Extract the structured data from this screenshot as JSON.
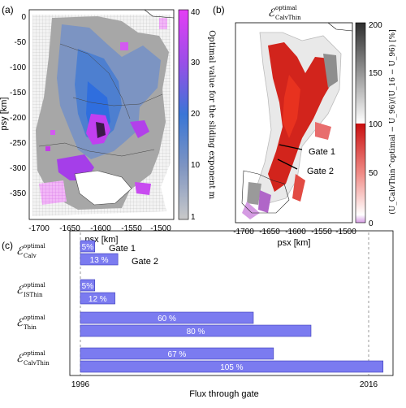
{
  "panel_a": {
    "label": "(a)",
    "xlabel": "psx [km]",
    "ylabel": "psy [km]",
    "xticks": [
      "-1700",
      "-1650",
      "-1600",
      "-1550",
      "-1500"
    ],
    "yticks": [
      "0",
      "-50",
      "-100",
      "-150",
      "-200",
      "-250",
      "-300",
      "-350"
    ],
    "colorbar_ticks": [
      "40",
      "30",
      "20",
      "10",
      "1"
    ],
    "colorbar_label": "Optimal value for the sliding exponent m"
  },
  "panel_b": {
    "label": "(b)",
    "title": "ℰ",
    "title_sup": "optimal",
    "title_sub": "CalvThin",
    "xlabel": "psx [km]",
    "xticks": [
      "-1700",
      "-1650",
      "-1600",
      "-1550",
      "-1500"
    ],
    "colorbar_ticks": [
      "200",
      "150",
      "100",
      "50",
      "0"
    ],
    "colorbar_label": "(U_CalvThin^optimal − U_96)/(U_16 − U_96) [%]",
    "gates": [
      "Gate 1",
      "Gate 2"
    ]
  },
  "panel_c": {
    "label": "(c)",
    "xlabel": "Flux through gate",
    "xticks": [
      "1996",
      "2016"
    ],
    "gate_labels": [
      "Gate 1",
      "Gate 2"
    ],
    "bar_color": "#7b7bf0"
  },
  "chart_data": {
    "type": "bar",
    "orientation": "horizontal",
    "xlabel": "Flux through gate",
    "xticks": [
      "1996",
      "2016"
    ],
    "categories": [
      "ℰ Calv optimal",
      "ℰ ISThin optimal",
      "ℰ Thin optimal",
      "ℰ CalvThin optimal"
    ],
    "series": [
      {
        "name": "Gate 1",
        "values": [
          5,
          5,
          60,
          67
        ]
      },
      {
        "name": "Gate 2",
        "values": [
          13,
          12,
          80,
          105
        ]
      }
    ],
    "labels": [
      [
        "5%",
        "13 %"
      ],
      [
        "5%",
        "12 %"
      ],
      [
        "60 %",
        "80 %"
      ],
      [
        "67 %",
        "105 %"
      ]
    ],
    "row_sub": [
      "Calv",
      "ISThin",
      "Thin",
      "CalvThin"
    ],
    "row_sup": "optimal"
  }
}
